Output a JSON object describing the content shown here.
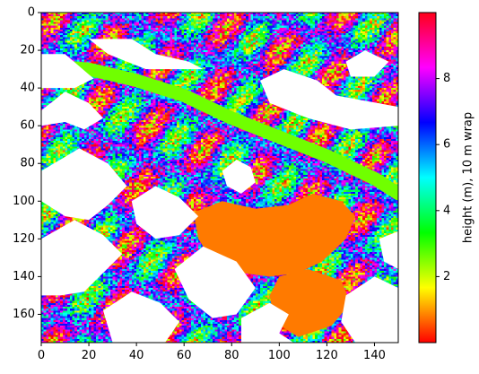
{
  "chart_data": {
    "type": "heatmap",
    "title": "",
    "xlabel": "",
    "ylabel": "",
    "x_range": [
      0,
      150
    ],
    "y_range": [
      175,
      0
    ],
    "y_inverted": true,
    "x_ticks": [
      0,
      20,
      40,
      60,
      80,
      100,
      120,
      140
    ],
    "y_ticks": [
      0,
      20,
      40,
      60,
      80,
      100,
      120,
      140,
      160
    ],
    "colormap": "hsv",
    "colorbar": {
      "label": "height (m), 10 m wrap",
      "range": [
        0,
        10
      ],
      "ticks": [
        2,
        4,
        6,
        8
      ]
    },
    "grid": false,
    "legend": "none",
    "masked_color": "#ffffff",
    "masked_regions": [
      {
        "name": "no-data upper-left wedge",
        "polygon": [
          [
            0,
            14
          ],
          [
            0,
            22
          ],
          [
            10,
            22
          ],
          [
            22,
            35
          ],
          [
            14,
            40
          ],
          [
            0,
            40
          ]
        ]
      },
      {
        "name": "no-data upper band",
        "polygon": [
          [
            20,
            14
          ],
          [
            38,
            14
          ],
          [
            48,
            22
          ],
          [
            62,
            26
          ],
          [
            68,
            30
          ],
          [
            44,
            30
          ],
          [
            28,
            22
          ]
        ]
      },
      {
        "name": "no-data left blob",
        "polygon": [
          [
            0,
            52
          ],
          [
            10,
            42
          ],
          [
            20,
            48
          ],
          [
            26,
            56
          ],
          [
            18,
            62
          ],
          [
            10,
            58
          ],
          [
            0,
            60
          ]
        ]
      },
      {
        "name": "no-data upper-right area",
        "polygon": [
          [
            92,
            36
          ],
          [
            102,
            30
          ],
          [
            116,
            36
          ],
          [
            124,
            44
          ],
          [
            150,
            50
          ],
          [
            150,
            60
          ],
          [
            130,
            62
          ],
          [
            112,
            56
          ],
          [
            96,
            48
          ]
        ]
      },
      {
        "name": "no-data right-top notch",
        "polygon": [
          [
            128,
            26
          ],
          [
            136,
            20
          ],
          [
            146,
            26
          ],
          [
            140,
            34
          ],
          [
            130,
            34
          ]
        ]
      },
      {
        "name": "no-data mid-left",
        "polygon": [
          [
            0,
            84
          ],
          [
            16,
            72
          ],
          [
            28,
            80
          ],
          [
            36,
            92
          ],
          [
            28,
            102
          ],
          [
            20,
            110
          ],
          [
            10,
            108
          ],
          [
            0,
            100
          ]
        ]
      },
      {
        "name": "no-data mid-center",
        "polygon": [
          [
            38,
            100
          ],
          [
            48,
            92
          ],
          [
            58,
            98
          ],
          [
            66,
            108
          ],
          [
            58,
            118
          ],
          [
            48,
            120
          ],
          [
            40,
            112
          ]
        ]
      },
      {
        "name": "no-data small hole",
        "polygon": [
          [
            76,
            84
          ],
          [
            82,
            78
          ],
          [
            88,
            82
          ],
          [
            90,
            90
          ],
          [
            84,
            96
          ],
          [
            78,
            92
          ]
        ]
      },
      {
        "name": "no-data lower-left",
        "polygon": [
          [
            0,
            120
          ],
          [
            14,
            110
          ],
          [
            26,
            118
          ],
          [
            34,
            128
          ],
          [
            26,
            138
          ],
          [
            18,
            148
          ],
          [
            8,
            150
          ],
          [
            0,
            150
          ]
        ]
      },
      {
        "name": "no-data lower-center-left",
        "polygon": [
          [
            26,
            158
          ],
          [
            38,
            148
          ],
          [
            50,
            154
          ],
          [
            58,
            164
          ],
          [
            52,
            175
          ],
          [
            30,
            175
          ]
        ]
      },
      {
        "name": "no-data lower-center",
        "polygon": [
          [
            56,
            136
          ],
          [
            68,
            124
          ],
          [
            82,
            132
          ],
          [
            90,
            146
          ],
          [
            82,
            160
          ],
          [
            72,
            162
          ],
          [
            62,
            152
          ]
        ]
      },
      {
        "name": "no-data lower-right bottom",
        "polygon": [
          [
            84,
            162
          ],
          [
            96,
            154
          ],
          [
            104,
            160
          ],
          [
            100,
            170
          ],
          [
            106,
            175
          ],
          [
            84,
            175
          ]
        ]
      },
      {
        "name": "no-data lower-right",
        "polygon": [
          [
            128,
            150
          ],
          [
            140,
            140
          ],
          [
            150,
            146
          ],
          [
            150,
            175
          ],
          [
            132,
            175
          ],
          [
            126,
            164
          ]
        ]
      },
      {
        "name": "no-data right notch",
        "polygon": [
          [
            142,
            120
          ],
          [
            150,
            116
          ],
          [
            150,
            136
          ],
          [
            144,
            132
          ]
        ]
      }
    ],
    "uniform_regions": [
      {
        "name": "river channel",
        "value": 2.6,
        "polyline": [
          [
            0,
            28
          ],
          [
            20,
            30
          ],
          [
            40,
            36
          ],
          [
            60,
            44
          ],
          [
            80,
            56
          ],
          [
            100,
            66
          ],
          [
            120,
            76
          ],
          [
            140,
            88
          ],
          [
            150,
            96
          ]
        ],
        "width": 7
      },
      {
        "name": "orange plateau",
        "value": 0.8,
        "polygon": [
          [
            64,
            106
          ],
          [
            76,
            100
          ],
          [
            90,
            104
          ],
          [
            104,
            102
          ],
          [
            114,
            96
          ],
          [
            126,
            100
          ],
          [
            132,
            108
          ],
          [
            128,
            120
          ],
          [
            118,
            132
          ],
          [
            108,
            138
          ],
          [
            96,
            140
          ],
          [
            84,
            138
          ],
          [
            72,
            132
          ],
          [
            66,
            120
          ]
        ]
      },
      {
        "name": "orange lower lobe",
        "value": 0.8,
        "polygon": [
          [
            100,
            140
          ],
          [
            112,
            136
          ],
          [
            126,
            142
          ],
          [
            130,
            154
          ],
          [
            122,
            166
          ],
          [
            108,
            172
          ],
          [
            98,
            164
          ],
          [
            96,
            150
          ]
        ]
      }
    ]
  }
}
